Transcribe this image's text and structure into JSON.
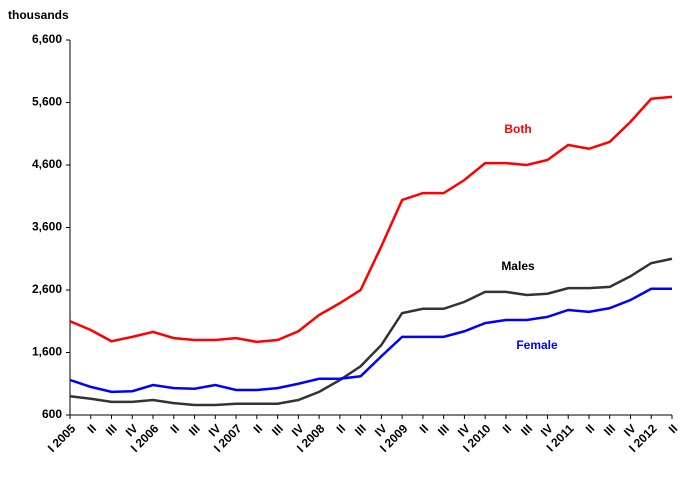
{
  "chart_data": {
    "type": "line",
    "ylabel": "thousands",
    "categories": [
      "I 2005",
      "II",
      "III",
      "IV",
      "I 2006",
      "II",
      "III",
      "IV",
      "I 2007",
      "II",
      "III",
      "IV",
      "I 2008",
      "II",
      "III",
      "IV",
      "I 2009",
      "II",
      "III",
      "IV",
      "I 2010",
      "II",
      "III",
      "IV",
      "I 2011",
      "II",
      "III",
      "IV",
      "I 2012",
      "II"
    ],
    "series": [
      {
        "name": "Both",
        "color": "#ff0000",
        "values": [
          2100,
          1960,
          1780,
          1850,
          1930,
          1830,
          1800,
          1800,
          1830,
          1770,
          1800,
          1940,
          2200,
          2390,
          2600,
          3300,
          4040,
          4150,
          4150,
          4360,
          4630,
          4630,
          4600,
          4680,
          4920,
          4860,
          4970,
          5290,
          5660,
          5690
        ]
      },
      {
        "name": "Males",
        "color": "#333333",
        "values": [
          900,
          860,
          810,
          810,
          840,
          790,
          760,
          760,
          780,
          780,
          780,
          840,
          970,
          1160,
          1380,
          1720,
          2230,
          2300,
          2300,
          2410,
          2570,
          2570,
          2520,
          2540,
          2630,
          2630,
          2650,
          2820,
          3030,
          3100
        ]
      },
      {
        "name": "Female",
        "color": "#0000ff",
        "values": [
          1160,
          1050,
          970,
          980,
          1080,
          1030,
          1020,
          1080,
          1000,
          1000,
          1030,
          1100,
          1180,
          1180,
          1220,
          1540,
          1850,
          1850,
          1850,
          1940,
          2070,
          2120,
          2120,
          2170,
          2280,
          2250,
          2310,
          2440,
          2620,
          2620
        ]
      }
    ],
    "ylim": [
      600,
      6600
    ],
    "yticks": [
      600,
      {
        "value": 1600,
        "label": "1,600"
      },
      {
        "value": 2600,
        "label": "2,600"
      },
      {
        "value": 3600,
        "label": "3,600"
      },
      {
        "value": 4600,
        "label": "4,600"
      },
      {
        "value": 5600,
        "label": "5,600"
      },
      {
        "value": 6600,
        "label": "6,600"
      }
    ],
    "grid": false
  }
}
